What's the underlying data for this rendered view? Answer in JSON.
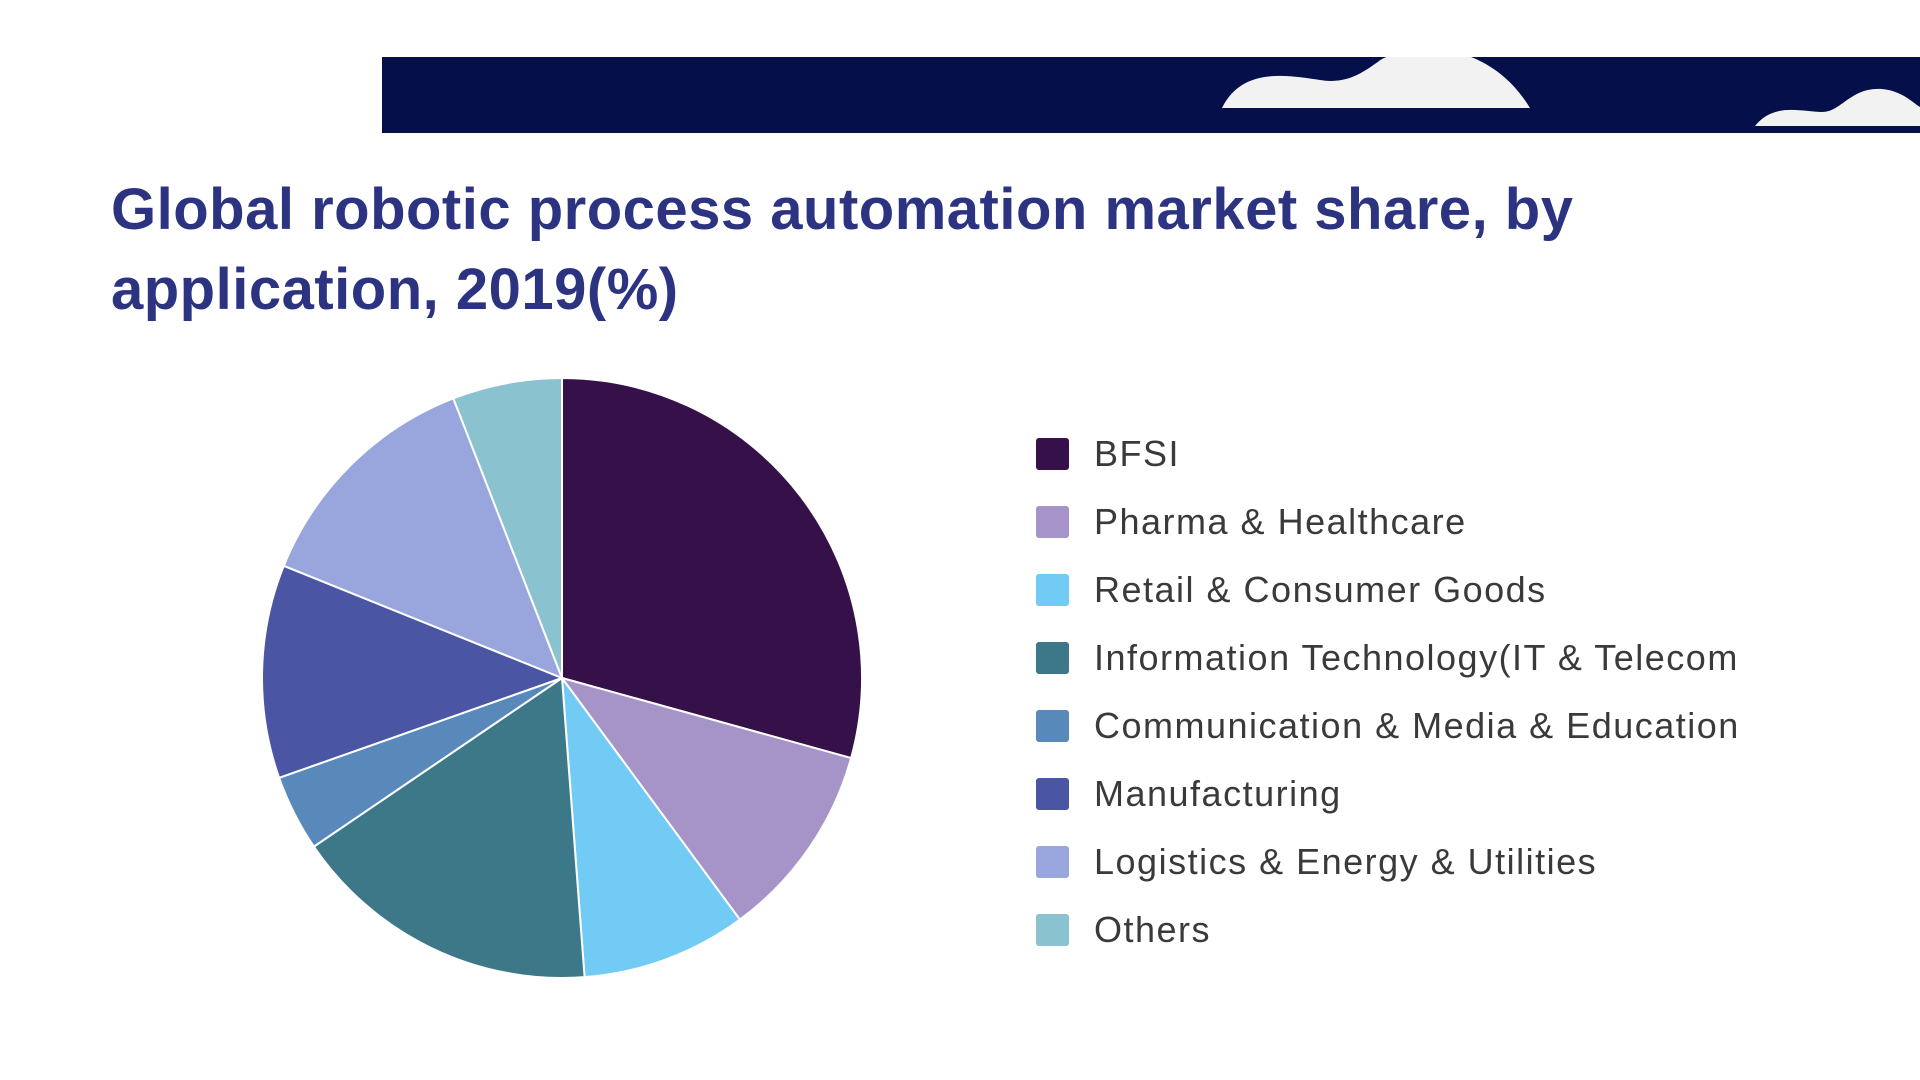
{
  "chart_data": {
    "type": "pie",
    "title": "Global robotic process automation market share, by application, 2019(%)",
    "categories": [
      "BFSI",
      "Pharma & Healthcare",
      "Retail & Consumer Goods",
      "Information Technology(IT & Telecom",
      "Communication & Media & Education",
      "Manufacturing",
      "Logistics & Energy & Utilities",
      "Others"
    ],
    "values": [
      29.3,
      10.6,
      8.9,
      16.7,
      4.1,
      11.5,
      13.0,
      5.9
    ],
    "colors": [
      "#361048",
      "#a694c9",
      "#72cbf4",
      "#3d7889",
      "#5889ba",
      "#4a56a3",
      "#99a6de",
      "#8ac2cf"
    ],
    "legend_position": "right"
  },
  "banner": {
    "color": "#05104a"
  }
}
